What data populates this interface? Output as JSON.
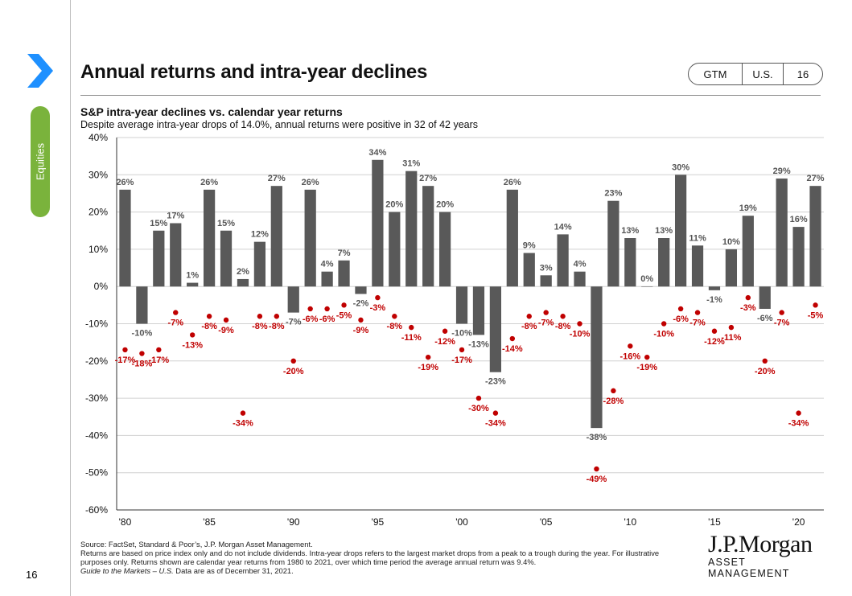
{
  "page": {
    "title": "Annual returns and intra-year declines",
    "badge": [
      "GTM",
      "U.S.",
      "16"
    ],
    "side_tab": "Equities",
    "page_number": "16",
    "logo_main": "J.P.Morgan",
    "logo_sub": "ASSET MANAGEMENT",
    "footer": [
      "Source: FactSet, Standard & Poor’s, J.P. Morgan Asset Management.",
      "Returns are based on price index only and do not include dividends. Intra-year drops refers to the largest market drops from a peak to a trough during the year. For illustrative purposes only. Returns shown are calendar year returns from 1980 to 2021, over which time period the average annual return was 9.4%."
    ],
    "footer_italic": "Guide to the Markets – U.S.",
    "footer_tail": " Data are as of December 31, 2021.",
    "colors": {
      "bar": "#595959",
      "decline": "#c00000",
      "tab": "#7ab33c",
      "chevron": "#1e90ff"
    }
  },
  "chart_data": {
    "type": "bar",
    "title": "S&P intra-year declines vs. calendar year returns",
    "subtitle": "Despite average intra-year drops of 14.0%, annual returns were positive in 32 of 42 years",
    "ylim": [
      -60,
      40
    ],
    "yticks": [
      40,
      30,
      20,
      10,
      0,
      -10,
      -20,
      -30,
      -40,
      -50,
      -60
    ],
    "ytick_labels": [
      "40%",
      "30%",
      "20%",
      "10%",
      "0%",
      "-10%",
      "-20%",
      "-30%",
      "-40%",
      "-50%",
      "-60%"
    ],
    "xtick_labels": [
      "'80",
      "'85",
      "'90",
      "'95",
      "'00",
      "'05",
      "'10",
      "'15",
      "'20"
    ],
    "xtick_years": [
      1980,
      1985,
      1990,
      1995,
      2000,
      2005,
      2010,
      2015,
      2020
    ],
    "grid": true,
    "categories": [
      1980,
      1981,
      1982,
      1983,
      1984,
      1985,
      1986,
      1987,
      1988,
      1989,
      1990,
      1991,
      1992,
      1993,
      1994,
      1995,
      1996,
      1997,
      1998,
      1999,
      2000,
      2001,
      2002,
      2003,
      2004,
      2005,
      2006,
      2007,
      2008,
      2009,
      2010,
      2011,
      2012,
      2013,
      2014,
      2015,
      2016,
      2017,
      2018,
      2019,
      2020,
      2021
    ],
    "series": [
      {
        "values": [
          26,
          -10,
          15,
          17,
          1,
          26,
          15,
          2,
          12,
          27,
          -7,
          26,
          4,
          7,
          -2,
          34,
          20,
          31,
          27,
          20,
          -10,
          -13,
          -23,
          26,
          9,
          3,
          14,
          4,
          -38,
          23,
          13,
          0,
          13,
          30,
          11,
          -1,
          10,
          19,
          -6,
          29,
          16,
          27
        ],
        "labels": [
          "26%",
          "-10%",
          "15%",
          "17%",
          "1%",
          "26%",
          "15%",
          "2%",
          "12%",
          "27%",
          "-7%",
          "26%",
          "4%",
          "7%",
          "-2%",
          "34%",
          "20%",
          "31%",
          "27%",
          "20%",
          "-10%",
          "-13%",
          "-23%",
          "26%",
          "9%",
          "3%",
          "14%",
          "4%",
          "-38%",
          "23%",
          "13%",
          "0%",
          "13%",
          "30%",
          "11%",
          "-1%",
          "10%",
          "19%",
          "-6%",
          "29%",
          "16%",
          "27%"
        ]
      },
      {
        "values": [
          -17,
          -18,
          -17,
          -7,
          -13,
          -8,
          -9,
          -34,
          -8,
          -8,
          -20,
          -6,
          -6,
          -5,
          -9,
          -3,
          -8,
          -11,
          -19,
          -12,
          -17,
          -30,
          -34,
          -14,
          -8,
          -7,
          -8,
          -10,
          -49,
          -28,
          -16,
          -19,
          -10,
          -6,
          -7,
          -12,
          -11,
          -3,
          -20,
          -7,
          -34,
          -5
        ],
        "labels": [
          "-17%",
          "-18%",
          "-17%",
          "-7%",
          "-13%",
          "-8%",
          "-9%",
          "-34%",
          "-8%",
          "-8%",
          "-20%",
          "-6%",
          "-6%",
          "-5%",
          "-9%",
          "-3%",
          "-8%",
          "-11%",
          "-19%",
          "-12%",
          "-17%",
          "-30%",
          "-34%",
          "-14%",
          "-8%",
          "-7%",
          "-8%",
          "-10%",
          "-49%",
          "-28%",
          "-16%",
          "-19%",
          "-10%",
          "-6%",
          "-7%",
          "-12%",
          "-11%",
          "-3%",
          "-20%",
          "-7%",
          "-34%",
          "-5%"
        ]
      }
    ]
  }
}
